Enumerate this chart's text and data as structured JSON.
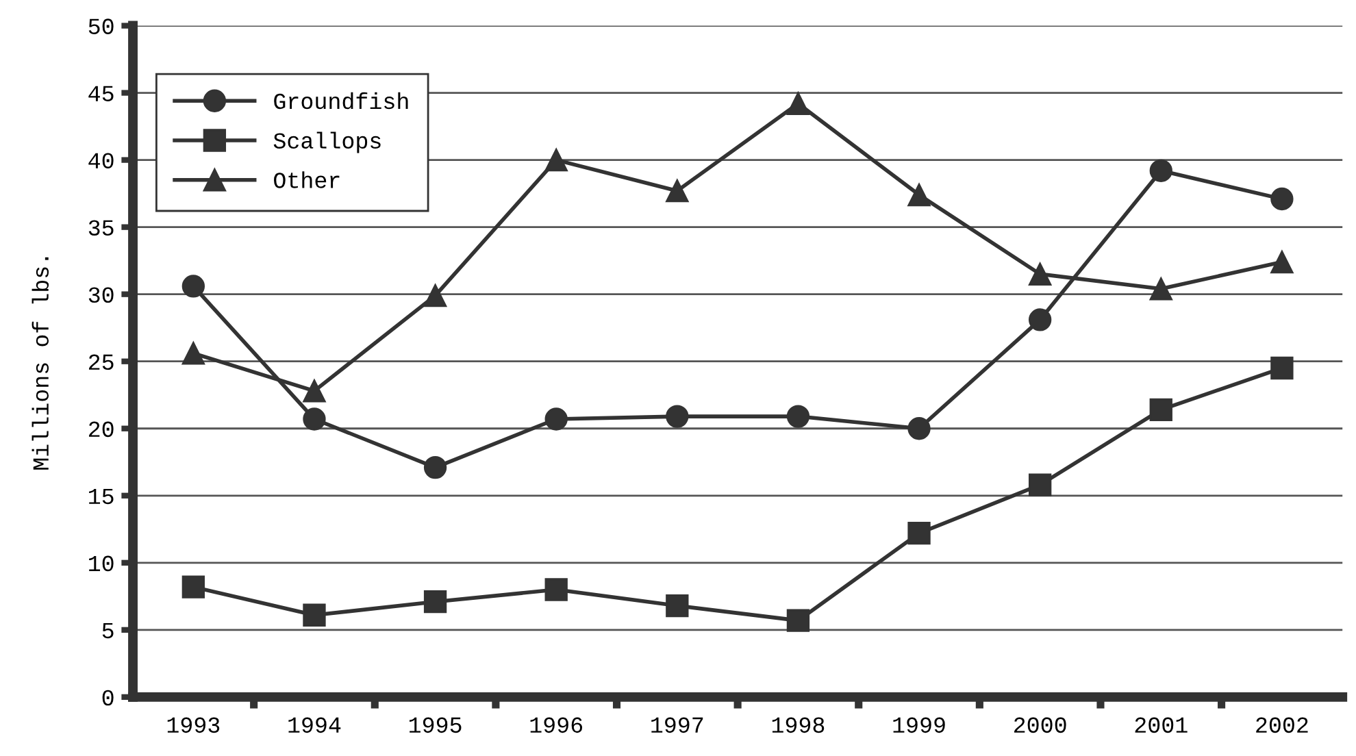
{
  "chart_data": {
    "type": "line",
    "ylabel": "Millions of lbs.",
    "categories": [
      "1993",
      "1994",
      "1995",
      "1996",
      "1997",
      "1998",
      "1999",
      "2000",
      "2001",
      "2002"
    ],
    "series": [
      {
        "name": "Groundfish",
        "color": "#333333",
        "marker": "circle",
        "values": [
          30.6,
          20.7,
          17.1,
          20.7,
          20.9,
          20.9,
          20.0,
          28.1,
          39.2,
          37.1
        ]
      },
      {
        "name": "Scallops",
        "color": "#333333",
        "marker": "square",
        "values": [
          8.2,
          6.1,
          7.1,
          8.0,
          6.8,
          5.7,
          12.2,
          15.8,
          21.4,
          24.5
        ]
      },
      {
        "name": "Other",
        "color": "#333333",
        "marker": "triangle",
        "values": [
          25.6,
          22.8,
          29.9,
          40.0,
          37.7,
          44.2,
          37.4,
          31.5,
          30.4,
          32.4
        ]
      }
    ],
    "ylim": [
      0,
      50
    ],
    "yticks": [
      0,
      5,
      10,
      15,
      20,
      25,
      30,
      35,
      40,
      45,
      50
    ],
    "grid": "y",
    "legend": "top left",
    "line_style": "solid"
  }
}
